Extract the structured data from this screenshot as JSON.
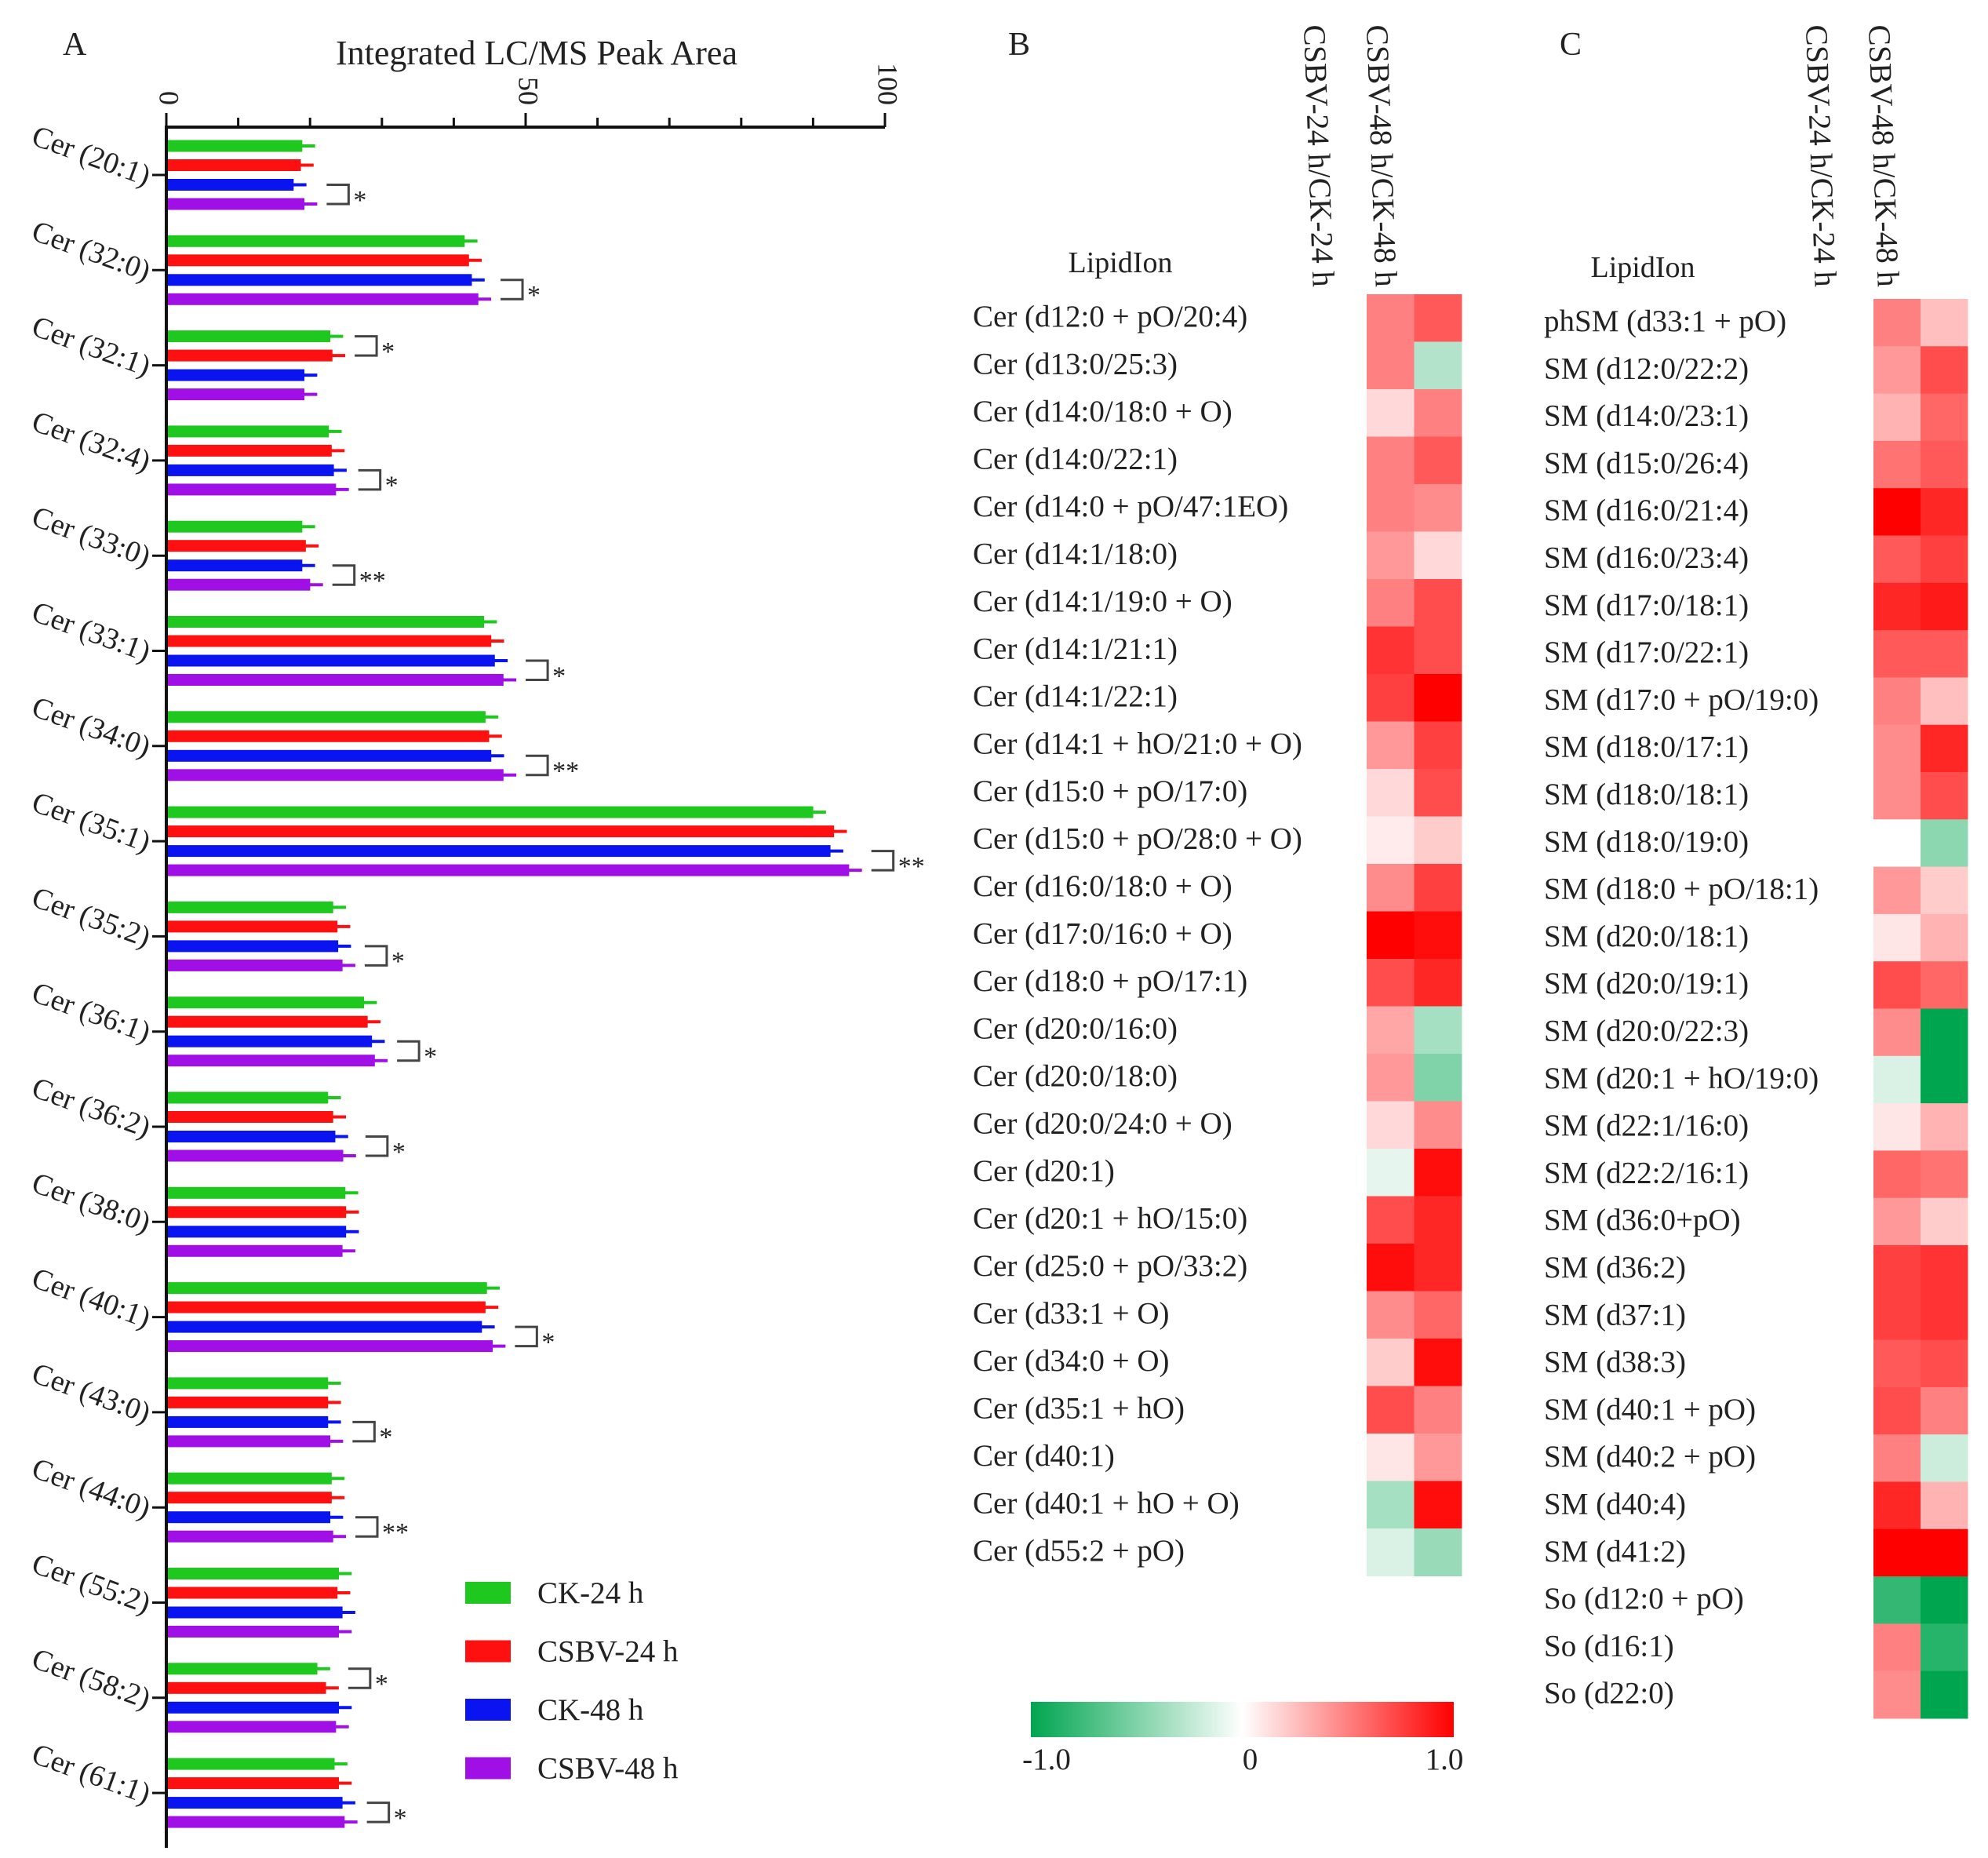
{
  "chart_data": [
    {
      "panel": "A",
      "type": "bar",
      "orientation": "horizontal",
      "title": "Integrated LC/MS Peak Area",
      "xlim": [
        0,
        100
      ],
      "xticks": [
        "0",
        "50",
        "100"
      ],
      "categories": [
        "Cer (20:1)",
        "Cer (32:0)",
        "Cer (32:1)",
        "Cer (32:4)",
        "Cer (33:0)",
        "Cer (33:1)",
        "Cer (34:0)",
        "Cer (35:1)",
        "Cer (35:2)",
        "Cer (36:1)",
        "Cer (36:2)",
        "Cer (38:0)",
        "Cer (40:1)",
        "Cer (43:0)",
        "Cer (44:0)",
        "Cer (55:2)",
        "Cer (58:2)",
        "Cer (61:1)"
      ],
      "series": [
        {
          "name": "CK-24 h",
          "color": "#1ec81e",
          "values": [
            18.7,
            41.3,
            22.6,
            22.4,
            18.7,
            44.0,
            44.2,
            89.8,
            23.0,
            27.3,
            22.3,
            24.7,
            44.4,
            22.3,
            22.8,
            23.8,
            20.8,
            23.2
          ]
        },
        {
          "name": "CSBV-24 h",
          "color": "#ff1010",
          "values": [
            18.5,
            41.9,
            22.9,
            22.8,
            19.2,
            45.0,
            44.7,
            92.7,
            23.6,
            27.8,
            23.0,
            24.8,
            44.2,
            22.3,
            22.8,
            23.6,
            22.0,
            23.8
          ]
        },
        {
          "name": "CK-48 h",
          "color": "#0a14f0",
          "values": [
            17.5,
            42.3,
            19.0,
            23.1,
            18.7,
            45.5,
            45.0,
            92.2,
            23.7,
            28.4,
            23.3,
            24.8,
            43.7,
            22.3,
            22.6,
            24.3,
            23.8,
            24.3
          ]
        },
        {
          "name": "CSBV-48 h",
          "color": "#a010e6",
          "values": [
            19.0,
            43.2,
            19.0,
            23.4,
            19.8,
            46.7,
            46.7,
            94.8,
            24.3,
            28.8,
            24.4,
            24.3,
            45.2,
            22.6,
            23.0,
            23.8,
            23.4,
            24.6
          ]
        }
      ],
      "significance": [
        {
          "pair": [
            2,
            3
          ],
          "mark": "*"
        },
        {
          "pair": [
            2,
            3
          ],
          "mark": "*"
        },
        {
          "pair": [
            0,
            1
          ],
          "mark": "*"
        },
        {
          "pair": [
            2,
            3
          ],
          "mark": "*"
        },
        {
          "pair": [
            2,
            3
          ],
          "mark": "**"
        },
        {
          "pair": [
            2,
            3
          ],
          "mark": "*"
        },
        {
          "pair": [
            2,
            3
          ],
          "mark": "**"
        },
        {
          "pair": [
            2,
            3
          ],
          "mark": "**"
        },
        {
          "pair": [
            2,
            3
          ],
          "mark": "*"
        },
        {
          "pair": [
            2,
            3
          ],
          "mark": "*"
        },
        {
          "pair": [
            2,
            3
          ],
          "mark": "*"
        },
        null,
        {
          "pair": [
            2,
            3
          ],
          "mark": "*"
        },
        {
          "pair": [
            2,
            3
          ],
          "mark": "*"
        },
        {
          "pair": [
            2,
            3
          ],
          "mark": "**"
        },
        null,
        {
          "pair": [
            0,
            1
          ],
          "mark": "*"
        },
        {
          "pair": [
            2,
            3
          ],
          "mark": "*"
        }
      ],
      "legend_position": "bottom-right"
    },
    {
      "panel": "B",
      "type": "heatmap",
      "row_header": "LipidIon",
      "columns": [
        "CSBV-24 h/CK-24 h",
        "CSBV-48 h/CK-48 h"
      ],
      "rows": [
        "Cer (d12:0 + pO/20:4)",
        "Cer (d13:0/25:3)",
        "Cer (d14:0/18:0 + O)",
        "Cer (d14:0/22:1)",
        "Cer (d14:0 + pO/47:1EO)",
        "Cer (d14:1/18:0)",
        "Cer (d14:1/19:0 + O)",
        "Cer (d14:1/21:1)",
        "Cer (d14:1/22:1)",
        "Cer (d14:1 + hO/21:0 + O)",
        "Cer (d15:0 + pO/17:0)",
        "Cer (d15:0 + pO/28:0 + O)",
        "Cer (d16:0/18:0 + O)",
        "Cer (d17:0/16:0 + O)",
        "Cer (d18:0 + pO/17:1)",
        "Cer (d20:0/16:0)",
        "Cer (d20:0/18:0)",
        "Cer (d20:0/24:0 + O)",
        "Cer (d20:1)",
        "Cer (d20:1 + hO/15:0)",
        "Cer (d25:0 + pO/33:2)",
        "Cer (d33:1 + O)",
        "Cer (d34:0 + O)",
        "Cer (d35:1 + hO)",
        "Cer (d40:1)",
        "Cer (d40:1 + hO + O)",
        "Cer (d55:2 + pO)"
      ],
      "values": [
        [
          0.5,
          0.65
        ],
        [
          0.5,
          -0.3
        ],
        [
          0.15,
          0.5
        ],
        [
          0.5,
          0.65
        ],
        [
          0.5,
          0.45
        ],
        [
          0.4,
          0.15
        ],
        [
          0.5,
          0.7
        ],
        [
          0.8,
          0.7
        ],
        [
          0.75,
          1.0
        ],
        [
          0.4,
          0.75
        ],
        [
          0.15,
          0.7
        ],
        [
          0.08,
          0.2
        ],
        [
          0.45,
          0.75
        ],
        [
          1.0,
          0.95
        ],
        [
          0.7,
          0.85
        ],
        [
          0.35,
          -0.35
        ],
        [
          0.4,
          -0.5
        ],
        [
          0.15,
          0.45
        ],
        [
          -0.1,
          0.95
        ],
        [
          0.7,
          0.85
        ],
        [
          0.95,
          0.85
        ],
        [
          0.45,
          0.6
        ],
        [
          0.2,
          0.95
        ],
        [
          0.7,
          0.5
        ],
        [
          0.1,
          0.4
        ],
        [
          -0.35,
          0.95
        ],
        [
          -0.15,
          -0.4
        ]
      ],
      "colorbar": {
        "min_label": "-1.0",
        "mid_label": "0",
        "max_label": "1.0",
        "range": [
          -1,
          1
        ],
        "low_color": "#00a550",
        "mid_color": "#ffffff",
        "high_color": "#ff0000"
      }
    },
    {
      "panel": "C",
      "type": "heatmap",
      "row_header": "LipidIon",
      "columns": [
        "CSBV-24 h/CK-24 h",
        "CSBV-48 h/CK-48 h"
      ],
      "rows": [
        "phSM (d33:1 + pO)",
        "SM (d12:0/22:2)",
        "SM (d14:0/23:1)",
        "SM (d15:0/26:4)",
        "SM (d16:0/21:4)",
        "SM (d16:0/23:4)",
        "SM (d17:0/18:1)",
        "SM (d17:0/22:1)",
        "SM (d17:0 + pO/19:0)",
        "SM (d18:0/17:1)",
        "SM (d18:0/18:1)",
        "SM (d18:0/19:0)",
        "SM (d18:0 + pO/18:1)",
        "SM (d20:0/18:1)",
        "SM (d20:0/19:1)",
        "SM (d20:0/22:3)",
        "SM (d20:1 + hO/19:0)",
        "SM (d22:1/16:0)",
        "SM (d22:2/16:1)",
        "SM (d36:0+pO)",
        "SM (d36:2)",
        "SM (d37:1)",
        "SM (d38:3)",
        "SM (d40:1 + pO)",
        "SM (d40:2 + pO)",
        "SM (d40:4)",
        "SM (d41:2)",
        "So (d12:0 + pO)",
        "So (d16:1)",
        "So (d22:0)"
      ],
      "values": [
        [
          0.5,
          0.25
        ],
        [
          0.4,
          0.7
        ],
        [
          0.3,
          0.6
        ],
        [
          0.55,
          0.65
        ],
        [
          1.0,
          0.85
        ],
        [
          0.65,
          0.75
        ],
        [
          0.85,
          0.9
        ],
        [
          0.65,
          0.65
        ],
        [
          0.5,
          0.25
        ],
        [
          0.45,
          0.85
        ],
        [
          0.45,
          0.7
        ],
        [
          0.0,
          -0.45
        ],
        [
          0.4,
          0.2
        ],
        [
          0.1,
          0.3
        ],
        [
          0.7,
          0.6
        ],
        [
          0.45,
          -1.0
        ],
        [
          -0.15,
          -1.0
        ],
        [
          0.1,
          0.3
        ],
        [
          0.6,
          0.55
        ],
        [
          0.4,
          0.2
        ],
        [
          0.75,
          0.8
        ],
        [
          0.75,
          0.8
        ],
        [
          0.65,
          0.7
        ],
        [
          0.7,
          0.5
        ],
        [
          0.5,
          -0.2
        ],
        [
          0.85,
          0.3
        ],
        [
          1.0,
          1.0
        ],
        [
          -0.8,
          -1.0
        ],
        [
          0.5,
          -0.85
        ],
        [
          0.45,
          -1.0
        ]
      ]
    }
  ]
}
